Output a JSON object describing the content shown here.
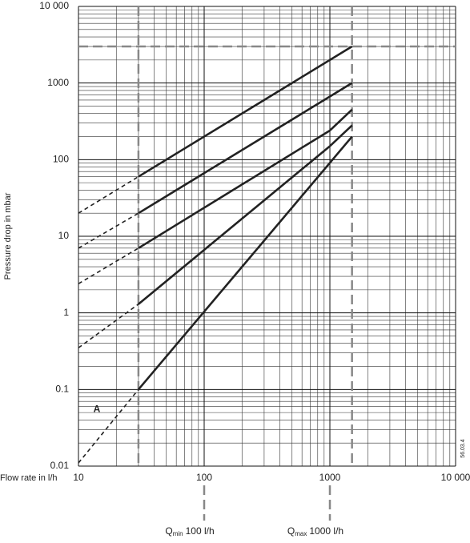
{
  "chart_data": {
    "type": "line",
    "ylabel": "Pressure drop in mbar",
    "xlabel": "Flow rate in l/h",
    "log_x": true,
    "log_y": true,
    "grid": true,
    "xlim": [
      10,
      10000
    ],
    "ylim": [
      0.01,
      10000
    ],
    "xticks": [
      10,
      100,
      1000,
      {
        "value": 10000,
        "label": "10 000"
      }
    ],
    "yticks": [
      0.01,
      0.1,
      1,
      10,
      100,
      1000,
      {
        "value": 10000,
        "label": "10 000"
      }
    ],
    "color": "#222222",
    "reference_lines": {
      "x": [
        30,
        1500
      ],
      "y": [
        3000
      ],
      "color": "#888888"
    },
    "series": [
      {
        "x": [
          10,
          30,
          1500
        ],
        "values": [
          20,
          60,
          3000
        ]
      },
      {
        "x": [
          10,
          30,
          1500
        ],
        "values": [
          7,
          20,
          1000
        ]
      },
      {
        "x": [
          10,
          30,
          1000,
          1500
        ],
        "values": [
          2.4,
          7,
          240,
          450
        ]
      },
      {
        "x": [
          10,
          30,
          1000,
          1500
        ],
        "values": [
          0.35,
          1.3,
          150,
          280
        ]
      },
      {
        "x": [
          10,
          30,
          1500
        ],
        "values": [
          0.011,
          0.1,
          200
        ]
      }
    ],
    "annotations": [
      {
        "text": "A",
        "x": 14,
        "y": 0.055
      }
    ],
    "code": "56.03.4",
    "q_markers": [
      {
        "x": 100,
        "symbol": "Q",
        "subscript": "min",
        "text": "100 l/h"
      },
      {
        "x": 1000,
        "symbol": "Q",
        "subscript": "max",
        "text": "1000 l/h"
      }
    ]
  }
}
